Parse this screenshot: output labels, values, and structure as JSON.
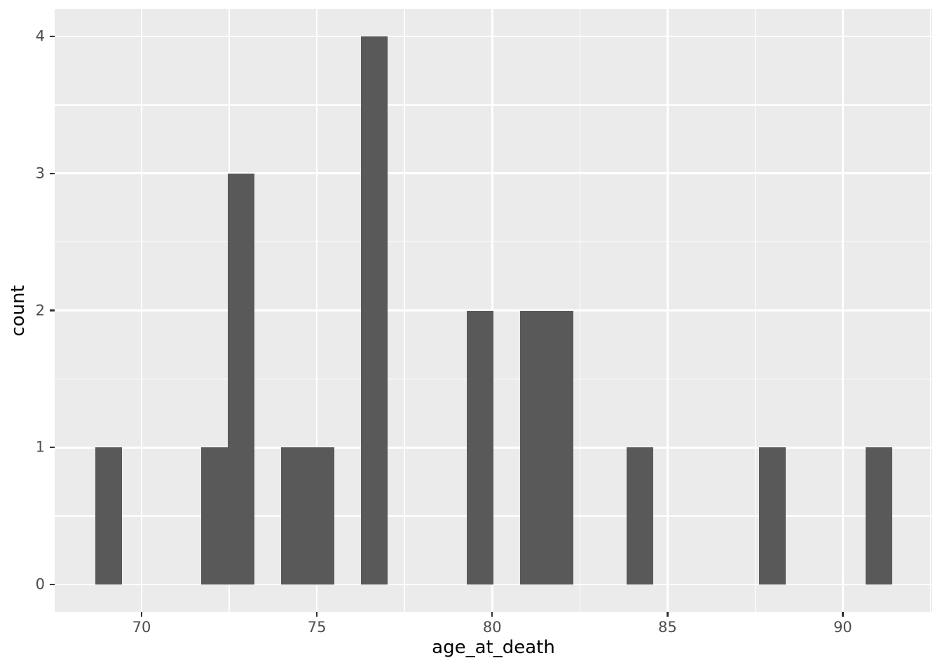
{
  "chart_data": {
    "type": "bar",
    "subtype": "histogram",
    "title": "",
    "xlabel": "age_at_death",
    "ylabel": "count",
    "legend": "none",
    "grid": "on",
    "xlim": [
      67.52,
      92.55
    ],
    "ylim": [
      -0.2,
      4.2
    ],
    "x_ticks": [
      70,
      75,
      80,
      85,
      90
    ],
    "y_ticks": [
      0,
      1,
      2,
      3,
      4
    ],
    "x_minor_ticks": [
      72.5,
      77.5,
      82.5,
      87.5,
      92.5
    ],
    "y_minor_ticks": [
      0.5,
      1.5,
      2.5,
      3.5
    ],
    "binwidth": 0.758,
    "bins": [
      {
        "x_left": 68.67,
        "x_right": 69.43,
        "count": 1
      },
      {
        "x_left": 71.7,
        "x_right": 72.46,
        "count": 1
      },
      {
        "x_left": 72.46,
        "x_right": 73.22,
        "count": 3
      },
      {
        "x_left": 73.98,
        "x_right": 74.74,
        "count": 1
      },
      {
        "x_left": 74.74,
        "x_right": 75.49,
        "count": 1
      },
      {
        "x_left": 76.25,
        "x_right": 77.01,
        "count": 4
      },
      {
        "x_left": 79.28,
        "x_right": 80.04,
        "count": 2
      },
      {
        "x_left": 80.8,
        "x_right": 81.56,
        "count": 2
      },
      {
        "x_left": 81.56,
        "x_right": 82.31,
        "count": 2
      },
      {
        "x_left": 83.83,
        "x_right": 84.59,
        "count": 1
      },
      {
        "x_left": 87.62,
        "x_right": 88.38,
        "count": 1
      },
      {
        "x_left": 90.65,
        "x_right": 91.41,
        "count": 1
      }
    ],
    "colors": {
      "bar_fill": "#595959",
      "panel_background": "#EBEBEB",
      "gridline": "#FFFFFF",
      "tick_label": "#4D4D4D",
      "axis_title": "#000000",
      "tick_mark": "#333333",
      "figure_background": "#FFFFFF"
    }
  }
}
